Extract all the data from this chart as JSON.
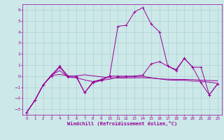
{
  "background_color": "#cce8e8",
  "grid_color": "#aacccc",
  "line_color": "#990099",
  "xlabel": "Windchill (Refroidissement éolien,°C)",
  "xlim": [
    -0.5,
    23.5
  ],
  "ylim": [
    -3.5,
    6.5
  ],
  "yticks": [
    -3,
    -2,
    -1,
    0,
    1,
    2,
    3,
    4,
    5,
    6
  ],
  "xticks": [
    0,
    1,
    2,
    3,
    4,
    5,
    6,
    7,
    8,
    9,
    10,
    11,
    12,
    13,
    14,
    15,
    16,
    17,
    18,
    19,
    20,
    21,
    22,
    23
  ],
  "line1_x": [
    0,
    1,
    2,
    3,
    4,
    5,
    6,
    7,
    8,
    9,
    10,
    11,
    12,
    13,
    14,
    15,
    16,
    17,
    18,
    19,
    20,
    21,
    22,
    23
  ],
  "line1_y": [
    -3.3,
    -2.2,
    -0.8,
    0.0,
    0.8,
    -0.1,
    -0.1,
    -1.5,
    -0.5,
    -0.3,
    0.0,
    4.5,
    4.6,
    5.8,
    6.2,
    4.7,
    4.0,
    0.9,
    0.5,
    1.6,
    0.8,
    -0.6,
    -1.7,
    -0.7
  ],
  "line2_x": [
    0,
    1,
    2,
    3,
    4,
    5,
    6,
    7,
    8,
    9,
    10,
    11,
    12,
    13,
    14,
    15,
    16,
    17,
    18,
    19,
    20,
    21,
    22,
    23
  ],
  "line2_y": [
    -3.3,
    -2.2,
    -0.8,
    0.1,
    0.5,
    -0.1,
    -0.15,
    -0.35,
    -0.5,
    -0.38,
    -0.28,
    -0.1,
    -0.08,
    -0.05,
    -0.02,
    -0.15,
    -0.25,
    -0.35,
    -0.38,
    -0.38,
    -0.45,
    -0.48,
    -0.55,
    -0.65
  ],
  "line3_x": [
    0,
    1,
    2,
    3,
    4,
    5,
    6,
    7,
    8,
    9,
    10,
    11,
    12,
    13,
    14,
    15,
    16,
    17,
    18,
    19,
    20,
    21,
    22,
    23
  ],
  "line3_y": [
    -3.3,
    -2.2,
    -0.8,
    0.05,
    0.15,
    0.02,
    0.02,
    0.12,
    0.02,
    -0.07,
    -0.15,
    -0.17,
    -0.17,
    -0.16,
    -0.15,
    -0.18,
    -0.25,
    -0.28,
    -0.3,
    -0.3,
    -0.32,
    -0.37,
    -0.4,
    -0.42
  ],
  "line4_x": [
    0,
    1,
    2,
    3,
    4,
    5,
    6,
    7,
    8,
    9,
    10,
    11,
    12,
    13,
    14,
    15,
    16,
    17,
    18,
    19,
    20,
    21,
    22,
    23
  ],
  "line4_y": [
    -3.3,
    -2.2,
    -0.8,
    0.1,
    0.9,
    0.0,
    0.0,
    -1.5,
    -0.6,
    -0.4,
    0.0,
    0.0,
    0.0,
    0.0,
    0.1,
    1.1,
    1.3,
    0.9,
    0.6,
    1.6,
    0.8,
    0.8,
    -1.7,
    -0.7
  ],
  "lw": 0.7,
  "marker_size": 2.5,
  "tick_fontsize": 4.5,
  "xlabel_fontsize": 5.0
}
